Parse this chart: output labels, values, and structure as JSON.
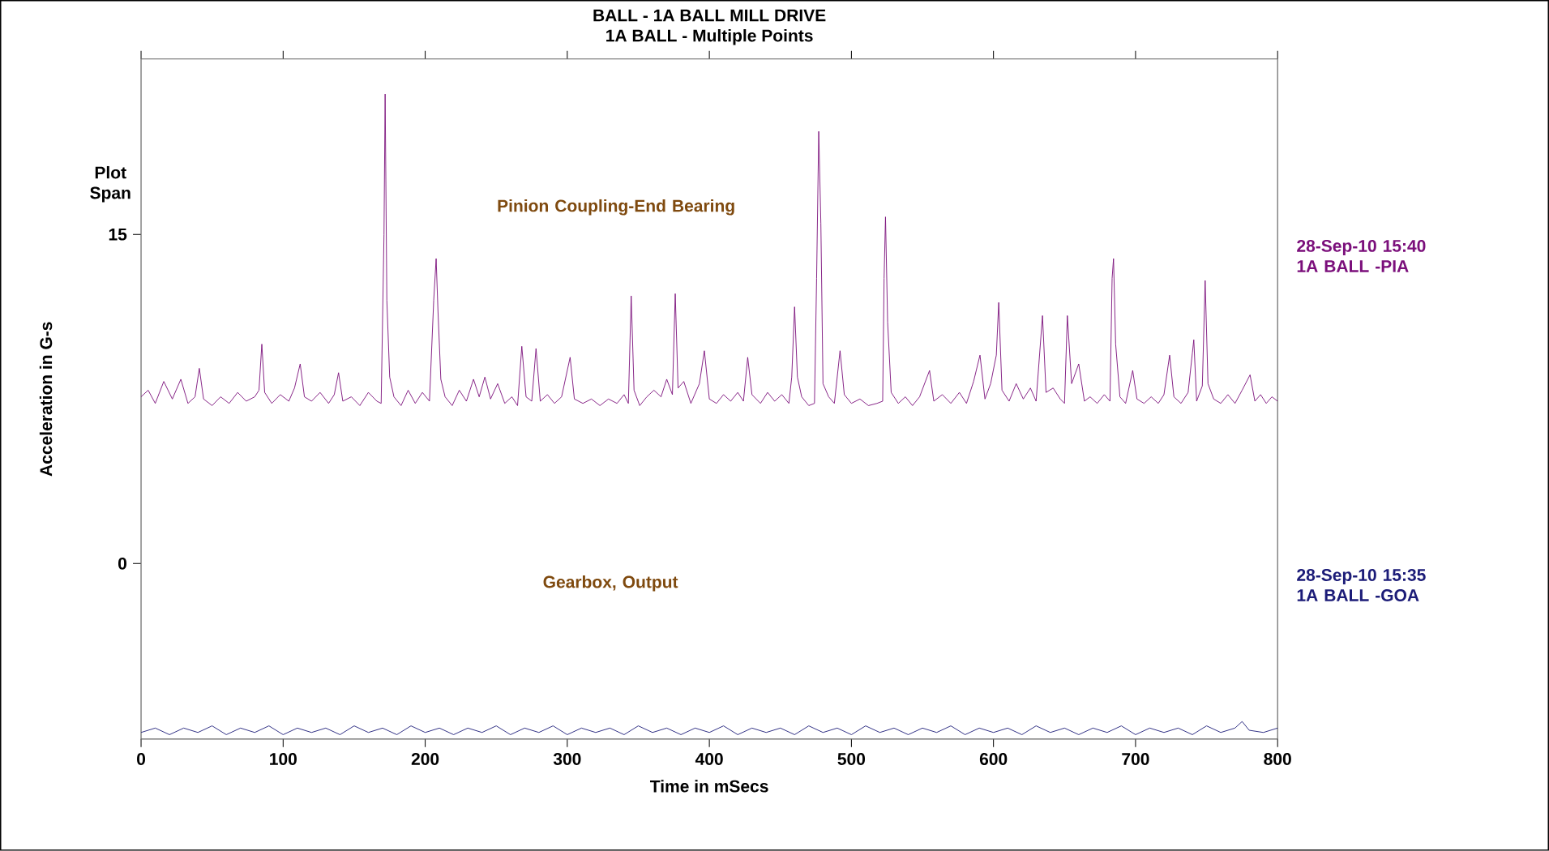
{
  "chart_data": {
    "type": "line",
    "title": "BALL - 1A BALL MILL DRIVE",
    "subtitle": "1A BALL    - Multiple Points",
    "xlabel": "Time in mSecs",
    "ylabel": "Acceleration in G-s",
    "xlim": [
      0,
      800
    ],
    "ylim": [
      -8.0,
      23.0
    ],
    "xticks": [
      0,
      100,
      200,
      300,
      400,
      500,
      600,
      700,
      800
    ],
    "yticks": [
      0,
      15
    ],
    "annotations": [
      "Plot Span",
      "Pinion Coupling-End Bearing",
      "Gearbox, Output"
    ],
    "series": [
      {
        "name": "28-Sep-10  15:40 1A BALL   -PIA",
        "color": "#7b0f7b",
        "x": [
          0,
          5,
          10,
          16,
          22,
          28,
          33,
          38,
          41,
          44,
          50,
          56,
          62,
          68,
          74,
          80,
          83,
          85,
          87,
          92,
          98,
          104,
          108,
          112,
          115,
          120,
          126,
          132,
          136,
          139,
          142,
          148,
          154,
          160,
          166,
          169,
          171,
          171.8,
          173,
          175,
          178,
          183,
          188,
          193,
          198,
          203,
          206,
          207.7,
          209,
          211,
          214,
          219,
          224,
          229,
          234,
          238,
          242,
          246,
          251,
          256,
          261,
          265,
          268,
          271,
          275,
          278,
          281,
          286,
          291,
          296,
          302,
          305,
          311,
          317,
          323,
          329,
          335,
          340,
          343,
          345,
          347,
          351,
          356,
          361,
          366,
          370,
          374,
          376,
          378,
          382,
          387,
          393,
          396.5,
          400,
          405,
          410,
          415,
          420,
          424,
          427,
          430,
          436,
          441,
          446,
          451,
          456,
          458,
          460,
          462,
          465,
          470,
          474,
          475.5,
          477,
          478.5,
          480,
          484,
          488,
          492,
          495,
          500,
          506,
          512,
          518,
          522,
          523,
          524,
          525.5,
          528,
          533,
          538,
          543,
          548,
          555,
          558,
          564,
          570,
          576,
          581,
          586,
          590.5,
          594,
          598,
          602,
          603.7,
          606,
          611,
          616,
          621,
          626,
          630,
          634.5,
          637,
          642,
          647,
          650,
          652,
          655,
          660,
          664,
          668,
          673,
          678,
          682,
          683.5,
          684.5,
          686,
          689,
          693,
          698,
          701,
          706,
          711,
          716,
          720,
          724,
          727,
          732,
          737,
          740,
          741,
          743,
          747,
          749,
          751,
          755,
          760,
          765,
          770,
          775,
          780.6,
          784,
          788,
          792,
          796,
          800
        ],
        "values": [
          7.6,
          7.9,
          7.3,
          8.3,
          7.5,
          8.4,
          7.3,
          7.6,
          8.9,
          7.5,
          7.2,
          7.6,
          7.3,
          7.8,
          7.4,
          7.6,
          7.9,
          10.0,
          7.8,
          7.3,
          7.7,
          7.4,
          8.0,
          9.1,
          7.6,
          7.4,
          7.8,
          7.3,
          7.7,
          8.7,
          7.4,
          7.6,
          7.2,
          7.8,
          7.4,
          7.3,
          15.0,
          21.4,
          12.0,
          8.5,
          7.6,
          7.2,
          7.9,
          7.3,
          7.8,
          7.4,
          12.0,
          13.9,
          11.5,
          8.4,
          7.6,
          7.2,
          7.9,
          7.4,
          8.4,
          7.6,
          8.5,
          7.5,
          8.2,
          7.3,
          7.6,
          7.2,
          9.9,
          7.6,
          7.4,
          9.8,
          7.4,
          7.7,
          7.3,
          7.6,
          9.4,
          7.5,
          7.3,
          7.5,
          7.2,
          7.5,
          7.3,
          7.7,
          7.3,
          12.2,
          7.9,
          7.2,
          7.6,
          7.9,
          7.6,
          8.4,
          7.7,
          12.3,
          8.0,
          8.3,
          7.3,
          8.2,
          9.7,
          7.5,
          7.3,
          7.7,
          7.4,
          7.8,
          7.4,
          9.4,
          7.7,
          7.3,
          7.8,
          7.4,
          7.7,
          7.3,
          8.5,
          11.7,
          8.5,
          7.6,
          7.2,
          7.3,
          13.0,
          19.7,
          15.5,
          8.2,
          7.6,
          7.3,
          9.7,
          7.7,
          7.3,
          7.5,
          7.2,
          7.3,
          7.4,
          13.0,
          15.8,
          11.0,
          7.8,
          7.3,
          7.6,
          7.2,
          7.6,
          8.8,
          7.4,
          7.7,
          7.3,
          7.8,
          7.3,
          8.3,
          9.5,
          7.5,
          8.2,
          9.5,
          11.9,
          7.9,
          7.4,
          8.2,
          7.5,
          8.0,
          7.4,
          11.3,
          7.8,
          8.0,
          7.5,
          7.3,
          11.3,
          8.2,
          9.1,
          7.4,
          7.6,
          7.3,
          7.7,
          7.4,
          13.0,
          13.9,
          10.0,
          7.6,
          7.3,
          8.8,
          7.5,
          7.3,
          7.6,
          7.3,
          7.7,
          9.5,
          7.6,
          7.3,
          7.8,
          9.6,
          10.2,
          7.4,
          8.1,
          12.9,
          8.2,
          7.5,
          7.3,
          7.7,
          7.3,
          7.9,
          8.6,
          7.4,
          7.7,
          7.3,
          7.6,
          7.4
        ]
      },
      {
        "name": "28-Sep-10  15:35 1A BALL   -GOA",
        "color": "#1c1c78",
        "x": [
          0,
          10,
          20,
          30,
          40,
          50,
          60,
          70,
          80,
          90,
          100,
          110,
          120,
          130,
          140,
          150,
          160,
          170,
          180,
          190,
          200,
          210,
          220,
          230,
          240,
          250,
          260,
          270,
          280,
          290,
          300,
          310,
          320,
          330,
          340,
          350,
          360,
          370,
          380,
          390,
          400,
          410,
          420,
          430,
          440,
          450,
          460,
          470,
          480,
          490,
          500,
          510,
          520,
          530,
          540,
          550,
          560,
          570,
          580,
          590,
          600,
          610,
          620,
          630,
          640,
          650,
          660,
          670,
          680,
          690,
          700,
          710,
          720,
          730,
          740,
          750,
          760,
          770,
          775,
          780,
          790,
          800
        ],
        "values": [
          -7.7,
          -7.5,
          -7.8,
          -7.5,
          -7.7,
          -7.4,
          -7.8,
          -7.5,
          -7.7,
          -7.4,
          -7.8,
          -7.5,
          -7.7,
          -7.5,
          -7.8,
          -7.4,
          -7.7,
          -7.5,
          -7.8,
          -7.4,
          -7.7,
          -7.5,
          -7.8,
          -7.5,
          -7.7,
          -7.4,
          -7.8,
          -7.5,
          -7.7,
          -7.4,
          -7.8,
          -7.5,
          -7.7,
          -7.5,
          -7.8,
          -7.4,
          -7.7,
          -7.5,
          -7.8,
          -7.5,
          -7.7,
          -7.4,
          -7.8,
          -7.5,
          -7.7,
          -7.5,
          -7.8,
          -7.4,
          -7.7,
          -7.5,
          -7.8,
          -7.4,
          -7.7,
          -7.5,
          -7.8,
          -7.5,
          -7.7,
          -7.4,
          -7.8,
          -7.5,
          -7.7,
          -7.5,
          -7.8,
          -7.4,
          -7.7,
          -7.5,
          -7.8,
          -7.5,
          -7.7,
          -7.4,
          -7.8,
          -7.5,
          -7.7,
          -7.5,
          -7.8,
          -7.4,
          -7.7,
          -7.5,
          -7.2,
          -7.6,
          -7.7,
          -7.5
        ]
      }
    ]
  }
}
